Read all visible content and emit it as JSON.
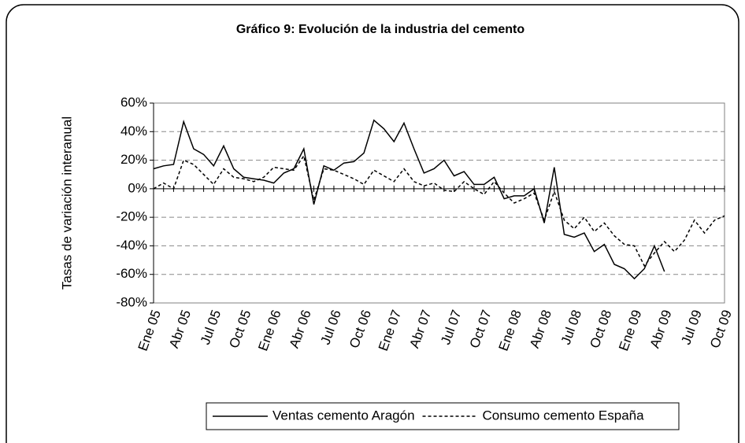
{
  "chart_data": {
    "type": "line",
    "title": "Gráfico 9: Evolución de la industria del cemento",
    "y_label": "Tasas de variación interanual",
    "categories": [
      "Ene 05",
      null,
      null,
      "Abr 05",
      null,
      null,
      "Jul 05",
      null,
      null,
      "Oct 05",
      null,
      null,
      "Ene 06",
      null,
      null,
      "Abr 06",
      null,
      null,
      "Jul 06",
      null,
      null,
      "Oct 06",
      null,
      null,
      "Ene 07",
      null,
      null,
      "Abr 07",
      null,
      null,
      "Jul 07",
      null,
      null,
      "Oct 07",
      null,
      null,
      "Ene 08",
      null,
      null,
      "Abr 08",
      null,
      null,
      "Jul 08",
      null,
      null,
      "Oct 08",
      null,
      null,
      "Ene 09",
      null,
      null,
      "Abr 09",
      null,
      null,
      "Jul 09",
      null,
      null,
      "Oct 09"
    ],
    "series": [
      {
        "name": "Ventas cemento Aragón",
        "color": "#000000",
        "dash": false,
        "values": [
          14,
          16,
          17,
          47,
          28,
          24,
          16,
          30,
          14,
          8,
          7,
          6,
          4,
          11,
          14,
          28,
          -11,
          16,
          13,
          18,
          19,
          25,
          48,
          42,
          33,
          46,
          28,
          11,
          14,
          20,
          9,
          12,
          3,
          3,
          8,
          -7,
          -5,
          -5,
          0,
          -24,
          15,
          -32,
          -34,
          -31,
          -44,
          -39,
          -53,
          -56,
          -63,
          -56,
          -40,
          -58,
          null,
          null,
          null,
          null,
          null,
          null
        ]
      },
      {
        "name": "Consumo cemento España",
        "color": "#000000",
        "dash": true,
        "values": [
          0,
          4,
          0,
          20,
          17,
          10,
          3,
          14,
          8,
          7,
          5,
          8,
          15,
          14,
          13,
          23,
          -8,
          14,
          13,
          10,
          7,
          3,
          13,
          9,
          5,
          14,
          5,
          2,
          4,
          -1,
          -2,
          5,
          0,
          -4,
          5,
          -3,
          -10,
          -7,
          -3,
          -22,
          -2,
          -22,
          -28,
          -20,
          -30,
          -24,
          -33,
          -39,
          -40,
          -54,
          -45,
          -37,
          -44,
          -36,
          -22,
          -31,
          -22,
          -19
        ]
      }
    ],
    "ylim": [
      -80,
      60
    ],
    "yticks": [
      {
        "value": -80,
        "label": "-80%"
      },
      {
        "value": -60,
        "label": "-60%"
      },
      {
        "value": -40,
        "label": "-40%"
      },
      {
        "value": -20,
        "label": "-20%"
      },
      {
        "value": 0,
        "label": "0%"
      },
      {
        "value": 20,
        "label": "20%"
      },
      {
        "value": 40,
        "label": "40%"
      },
      {
        "value": 60,
        "label": "60%"
      }
    ],
    "grid": true,
    "legend": "bottom"
  }
}
